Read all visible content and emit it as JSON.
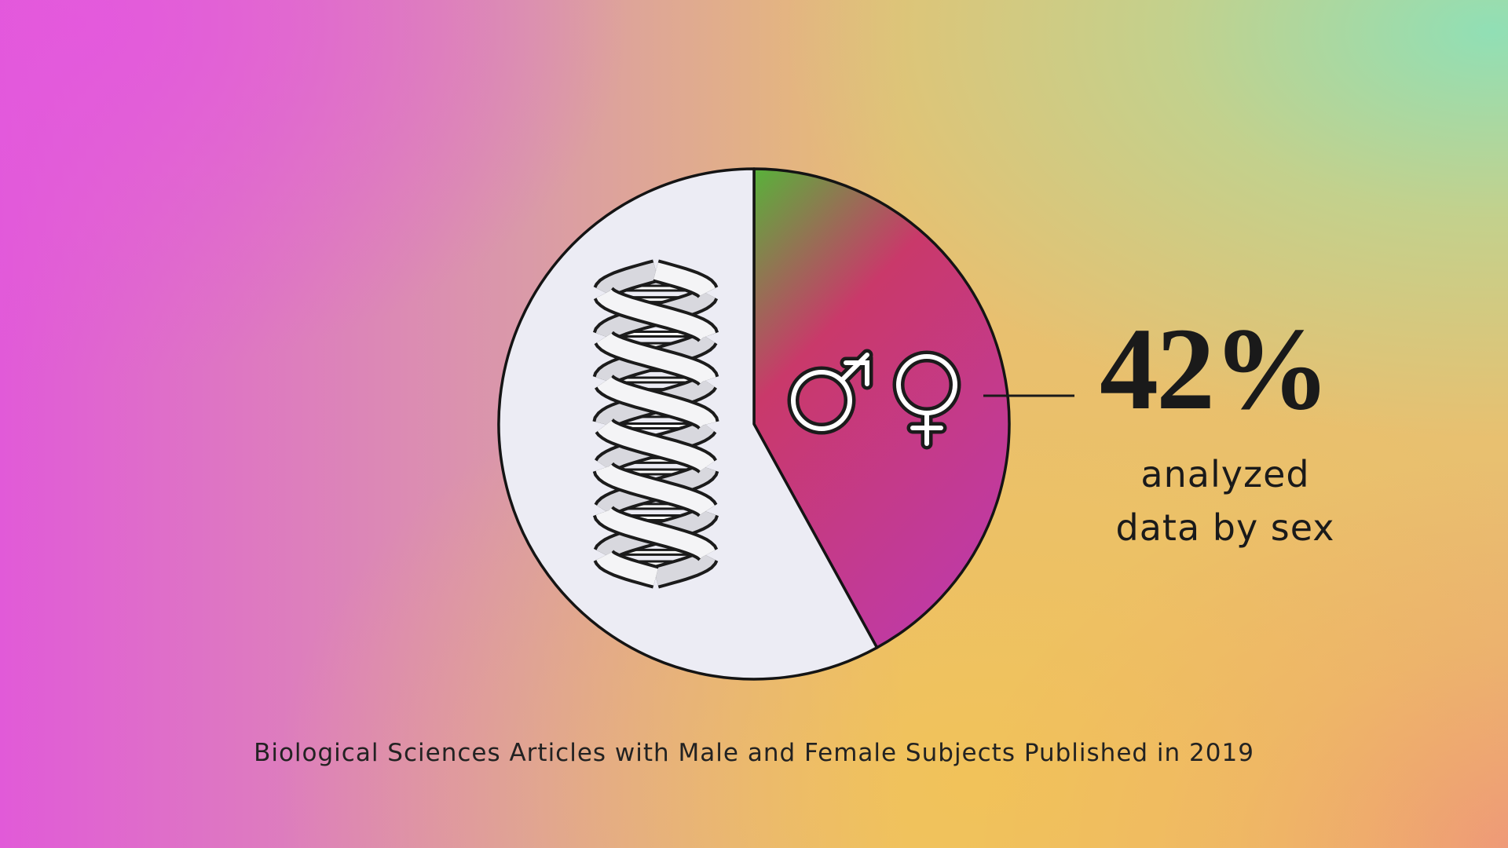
{
  "chart_data": {
    "type": "pie",
    "title": "",
    "slices": [
      {
        "label": "analyzed data by sex",
        "value": 42,
        "unit": "%",
        "colors": [
          "#58b23a",
          "#c9396a",
          "#c03aa2"
        ]
      },
      {
        "label": "",
        "value": 58,
        "unit": "%",
        "colors": [
          "#ececf4"
        ]
      }
    ],
    "callout": {
      "value_text": "42%",
      "label_lines": [
        "analyzed",
        "data by sex"
      ]
    },
    "icons": [
      "male-symbol-icon",
      "female-symbol-icon",
      "dna-helix-icon"
    ],
    "caption": "Biological Sciences Articles with Male and Female Subjects Published in 2019"
  }
}
